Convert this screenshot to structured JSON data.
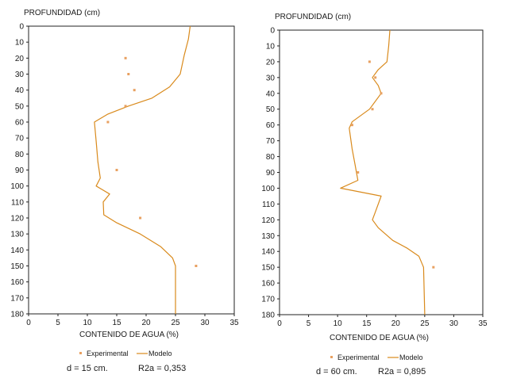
{
  "chart_data": [
    {
      "type": "line",
      "ylabel": "PROFUNDIDAD (cm)",
      "xlabel": "CONTENIDO DE AGUA (%)",
      "xlim": [
        0,
        35
      ],
      "ylim": [
        0,
        180
      ],
      "y_inverted": true,
      "xticks": [
        "0",
        "5",
        "10",
        "15",
        "20",
        "25",
        "30",
        "35"
      ],
      "yticks": [
        "0",
        "10",
        "20",
        "30",
        "40",
        "50",
        "60",
        "70",
        "80",
        "90",
        "100",
        "110",
        "120",
        "130",
        "140",
        "150",
        "160",
        "170",
        "180"
      ],
      "legend": {
        "experimental": "Experimental",
        "modelo": "Modelo"
      },
      "note": {
        "d": "d = 15 cm.",
        "r2a": "R2a = 0,353"
      },
      "series": [
        {
          "name": "Experimental",
          "points": [
            {
              "x": 16.5,
              "y": 20
            },
            {
              "x": 17.0,
              "y": 30
            },
            {
              "x": 18.0,
              "y": 40
            },
            {
              "x": 16.5,
              "y": 50
            },
            {
              "x": 13.5,
              "y": 60
            },
            {
              "x": 15.0,
              "y": 90
            },
            {
              "x": 19.0,
              "y": 120
            },
            {
              "x": 28.5,
              "y": 150
            }
          ]
        },
        {
          "name": "Modelo",
          "points": [
            {
              "x": 27.5,
              "y": 0
            },
            {
              "x": 27.2,
              "y": 8
            },
            {
              "x": 26.5,
              "y": 18
            },
            {
              "x": 25.8,
              "y": 30
            },
            {
              "x": 24.0,
              "y": 38
            },
            {
              "x": 21.0,
              "y": 45
            },
            {
              "x": 17.0,
              "y": 50
            },
            {
              "x": 13.5,
              "y": 55
            },
            {
              "x": 11.2,
              "y": 60
            },
            {
              "x": 11.5,
              "y": 72
            },
            {
              "x": 11.8,
              "y": 85
            },
            {
              "x": 12.2,
              "y": 95
            },
            {
              "x": 11.5,
              "y": 100
            },
            {
              "x": 13.8,
              "y": 105
            },
            {
              "x": 12.7,
              "y": 110
            },
            {
              "x": 12.8,
              "y": 118
            },
            {
              "x": 15.0,
              "y": 123
            },
            {
              "x": 19.0,
              "y": 130
            },
            {
              "x": 22.5,
              "y": 138
            },
            {
              "x": 24.5,
              "y": 145
            },
            {
              "x": 25.0,
              "y": 150
            },
            {
              "x": 25.0,
              "y": 180
            }
          ]
        }
      ]
    },
    {
      "type": "line",
      "ylabel": "PROFUNDIDAD (cm)",
      "xlabel": "CONTENIDO DE AGUA (%)",
      "xlim": [
        0,
        35
      ],
      "ylim": [
        0,
        180
      ],
      "y_inverted": true,
      "xticks": [
        "0",
        "5",
        "10",
        "15",
        "20",
        "25",
        "30",
        "35"
      ],
      "yticks": [
        "0",
        "10",
        "20",
        "30",
        "40",
        "50",
        "60",
        "70",
        "80",
        "90",
        "100",
        "110",
        "120",
        "130",
        "140",
        "150",
        "160",
        "170",
        "180"
      ],
      "legend": {
        "experimental": "Experimental",
        "modelo": "Modelo"
      },
      "note": {
        "d": "d = 60 cm.",
        "r2a": "R2a = 0,895"
      },
      "series": [
        {
          "name": "Experimental",
          "points": [
            {
              "x": 15.5,
              "y": 20
            },
            {
              "x": 16.5,
              "y": 30
            },
            {
              "x": 17.5,
              "y": 40
            },
            {
              "x": 16.0,
              "y": 50
            },
            {
              "x": 12.5,
              "y": 60
            },
            {
              "x": 13.5,
              "y": 90
            },
            {
              "x": 26.5,
              "y": 150
            }
          ]
        },
        {
          "name": "Modelo",
          "points": [
            {
              "x": 19.0,
              "y": 0
            },
            {
              "x": 18.8,
              "y": 10
            },
            {
              "x": 18.5,
              "y": 20
            },
            {
              "x": 17.0,
              "y": 25
            },
            {
              "x": 16.0,
              "y": 30
            },
            {
              "x": 17.0,
              "y": 35
            },
            {
              "x": 17.5,
              "y": 40
            },
            {
              "x": 15.5,
              "y": 50
            },
            {
              "x": 12.5,
              "y": 58
            },
            {
              "x": 12.0,
              "y": 62
            },
            {
              "x": 12.5,
              "y": 75
            },
            {
              "x": 13.0,
              "y": 85
            },
            {
              "x": 13.5,
              "y": 95
            },
            {
              "x": 10.5,
              "y": 100
            },
            {
              "x": 17.5,
              "y": 105
            },
            {
              "x": 16.5,
              "y": 115
            },
            {
              "x": 16.0,
              "y": 120
            },
            {
              "x": 17.0,
              "y": 125
            },
            {
              "x": 19.5,
              "y": 133
            },
            {
              "x": 22.0,
              "y": 138
            },
            {
              "x": 24.0,
              "y": 143
            },
            {
              "x": 24.8,
              "y": 150
            },
            {
              "x": 25.0,
              "y": 180
            }
          ]
        }
      ]
    }
  ],
  "colors": {
    "line": "#d98a1c",
    "marker": "#e8a060",
    "axis": "#222222",
    "text": "#1a1a1a"
  }
}
